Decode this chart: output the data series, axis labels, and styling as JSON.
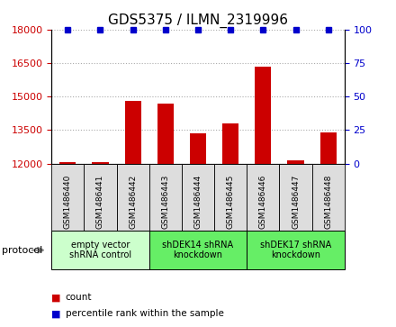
{
  "title": "GDS5375 / ILMN_2319996",
  "samples": [
    "GSM1486440",
    "GSM1486441",
    "GSM1486442",
    "GSM1486443",
    "GSM1486444",
    "GSM1486445",
    "GSM1486446",
    "GSM1486447",
    "GSM1486448"
  ],
  "counts": [
    12050,
    12080,
    14800,
    14700,
    13350,
    13800,
    16350,
    12150,
    13400
  ],
  "percentiles": [
    100,
    100,
    100,
    100,
    100,
    100,
    100,
    100,
    100
  ],
  "ylim_left": [
    12000,
    18000
  ],
  "ylim_right": [
    0,
    100
  ],
  "yticks_left": [
    12000,
    13500,
    15000,
    16500,
    18000
  ],
  "yticks_right": [
    0,
    25,
    50,
    75,
    100
  ],
  "bar_color": "#cc0000",
  "dot_color": "#0000cc",
  "bar_width": 0.5,
  "grid_color": "#aaaaaa",
  "tick_label_color_left": "#cc0000",
  "tick_label_color_right": "#0000cc",
  "sample_box_color": "#dddddd",
  "group_configs": [
    {
      "indices": [
        0,
        1,
        2
      ],
      "label": "empty vector\nshRNA control",
      "color": "#ccffcc"
    },
    {
      "indices": [
        3,
        4,
        5
      ],
      "label": "shDEK14 shRNA\nknockdown",
      "color": "#66ee66"
    },
    {
      "indices": [
        6,
        7,
        8
      ],
      "label": "shDEK17 shRNA\nknockdown",
      "color": "#66ee66"
    }
  ],
  "legend_count_color": "#cc0000",
  "legend_pct_color": "#0000cc"
}
